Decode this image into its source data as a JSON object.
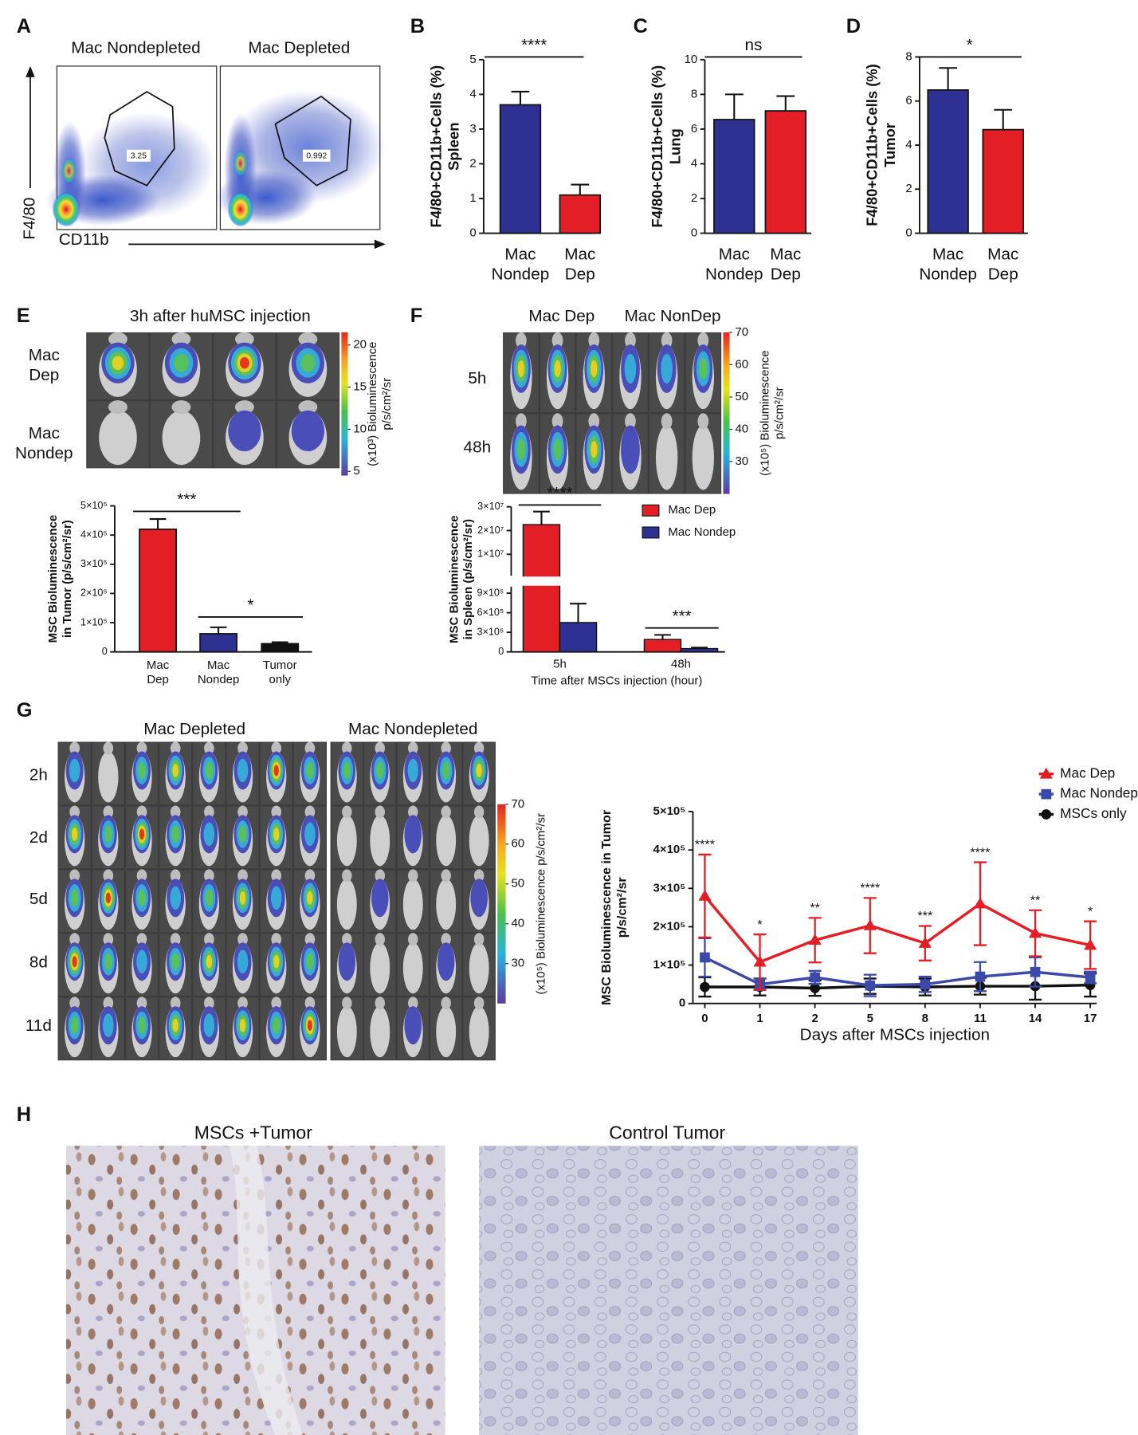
{
  "panel_labels": [
    "A",
    "B",
    "C",
    "D",
    "E",
    "F",
    "G",
    "H"
  ],
  "flow": {
    "ylabel": "F4/80",
    "xlabel": "CD11b",
    "plots": [
      {
        "title": "Mac Nondepleted",
        "gate": "3.25"
      },
      {
        "title": "Mac Depleted",
        "gate": "0.992"
      }
    ]
  },
  "imaging": [
    {
      "title": "3h after huMSC injection",
      "rows": [
        "Mac\nDep",
        "Mac\nNondep"
      ],
      "colorbar": {
        "lim": [
          4.5,
          21.5
        ],
        "ticks": [
          5,
          10,
          15,
          20
        ],
        "label": "(x10³) Bioluminescence\np/s/cm²/sr"
      }
    },
    {
      "columns": [
        "Mac Dep",
        "Mac NonDep"
      ],
      "rows": [
        "5h",
        "48h"
      ],
      "colorbar": {
        "lim": [
          20,
          70
        ],
        "ticks": [
          30,
          40,
          50,
          60,
          70
        ],
        "label": "(x10⁵) Bioluminescence\np/s/cm²/sr"
      }
    },
    {
      "columns": [
        "Mac Depleted",
        "Mac Nondepleted"
      ],
      "rows": [
        "2h",
        "2d",
        "5d",
        "8d",
        "11d"
      ],
      "colorbar": {
        "lim": [
          20,
          70
        ],
        "ticks": [
          30,
          40,
          50,
          60,
          70
        ],
        "label": "(x10⁵) Bioluminescence p/s/cm²/sr"
      }
    }
  ],
  "histology": {
    "panels": [
      "MSCs +Tumor",
      "Control Tumor"
    ]
  },
  "chart_data": [
    {
      "type": "bar",
      "ylabel": "F4/80+CD11b+Cells (%)\nSpleen",
      "categories": [
        "Mac\nNondep",
        "Mac\nDep"
      ],
      "values": [
        3.7,
        1.1
      ],
      "errors": [
        0.38,
        0.3
      ],
      "colors": [
        "#2e3192",
        "#e31e24"
      ],
      "ylim": [
        0,
        5
      ],
      "yticks": [
        0,
        1,
        2,
        3,
        4,
        5
      ],
      "significance": [
        "****"
      ]
    },
    {
      "type": "bar",
      "ylabel": "F4/80+CD11b+Cells (%)\nLung",
      "categories": [
        "Mac\nNondep",
        "Mac\nDep"
      ],
      "values": [
        6.55,
        7.05
      ],
      "errors": [
        1.45,
        0.85
      ],
      "colors": [
        "#2e3192",
        "#e31e24"
      ],
      "ylim": [
        0,
        10
      ],
      "yticks": [
        0,
        2,
        4,
        6,
        8,
        10
      ],
      "significance": [
        "ns"
      ]
    },
    {
      "type": "bar",
      "ylabel": "F4/80+CD11b+Cells (%)\nTumor",
      "categories": [
        "Mac\nNondep",
        "Mac\nDep"
      ],
      "values": [
        6.5,
        4.7
      ],
      "errors": [
        1.0,
        0.9
      ],
      "colors": [
        "#2e3192",
        "#e31e24"
      ],
      "ylim": [
        0,
        8
      ],
      "yticks": [
        0,
        2,
        4,
        6,
        8
      ],
      "significance": [
        "*"
      ]
    },
    {
      "type": "bar",
      "ylabel": "MSC Bioluminescence\nin Tumor (p/s/cm²/sr)",
      "categories": [
        "Mac\nDep",
        "Mac\nNondep",
        "Tumor\nonly"
      ],
      "values": [
        420000,
        62000,
        28000
      ],
      "errors": [
        35000,
        22000,
        5000
      ],
      "colors": [
        "#e31e24",
        "#2e3192",
        "#111111"
      ],
      "ylim": [
        0,
        500000
      ],
      "yticks": [
        0,
        {
          "value": 100000,
          "label": "1×10⁵"
        },
        {
          "value": 200000,
          "label": "2×10⁵"
        },
        {
          "value": 300000,
          "label": "3×10⁵"
        },
        {
          "value": 400000,
          "label": "4×10⁵"
        },
        {
          "value": 500000,
          "label": "5×10⁵"
        }
      ],
      "significance": [
        "***",
        "*"
      ]
    },
    {
      "type": "bar",
      "ylabel": "MSC Bioluminescence\nin Spleen (p/s/cm²/sr)",
      "xlabel": "Time after MSCs injection (hour)",
      "categories": [
        "5h",
        "48h"
      ],
      "series": [
        {
          "name": "Mac Dep",
          "color": "#e31e24",
          "values": [
            22500000,
            190000
          ],
          "errors": [
            5500000,
            70000
          ]
        },
        {
          "name": "Mac Nondep",
          "color": "#2e3192",
          "values": [
            450000,
            50000
          ],
          "errors": [
            290000,
            15000
          ]
        }
      ],
      "ylim": [
        0,
        30000000
      ],
      "ybreak": 1000000,
      "yticks": [
        0,
        {
          "value": 300000,
          "label": "3×10⁵"
        },
        {
          "value": 600000,
          "label": "6×10⁵"
        },
        {
          "value": 900000,
          "label": "9×10⁵"
        },
        {
          "value": 10000000,
          "label": "1×10⁷"
        },
        {
          "value": 20000000,
          "label": "2×10⁷"
        },
        {
          "value": 30000000,
          "label": "3×10⁷"
        }
      ],
      "legend": "upper right",
      "significance": [
        "****",
        "***"
      ]
    },
    {
      "type": "line",
      "ylabel": "MSC Bioluminescence in Tumor\np/s/cm²/sr",
      "xlabel": "Days after MSCs injection",
      "categories": [
        "0",
        "1",
        "2",
        "5",
        "8",
        "11",
        "14",
        "17"
      ],
      "series": [
        {
          "name": "Mac Dep",
          "color": "#e31e24",
          "marker": "triangle",
          "values": [
            280000,
            108000,
            165000,
            203000,
            157000,
            260000,
            183000,
            152000
          ],
          "errors": [
            108000,
            72000,
            58000,
            72000,
            45000,
            108000,
            60000,
            62000
          ]
        },
        {
          "name": "Mac Nondep",
          "color": "#3b49a8",
          "marker": "square",
          "values": [
            120000,
            50000,
            68000,
            47000,
            50000,
            70000,
            82000,
            68000
          ],
          "errors": [
            50000,
            15000,
            17000,
            28000,
            20000,
            38000,
            38000,
            15000
          ]
        },
        {
          "name": "MSCs only",
          "color": "#111111",
          "marker": "circle",
          "values": [
            43000,
            43000,
            40000,
            45000,
            43000,
            45000,
            45000,
            48000
          ],
          "errors": [
            25000,
            22000,
            20000,
            20000,
            22000,
            22000,
            35000,
            30000
          ]
        }
      ],
      "ylim": [
        0,
        500000
      ],
      "yticks": [
        0,
        {
          "value": 100000,
          "label": "1×10⁵"
        },
        {
          "value": 200000,
          "label": "2×10⁵"
        },
        {
          "value": 300000,
          "label": "3×10⁵"
        },
        {
          "value": 400000,
          "label": "4×10⁵"
        },
        {
          "value": 500000,
          "label": "5×10⁵"
        }
      ],
      "legend": "upper right",
      "significance": [
        "****",
        "*",
        "**",
        "****",
        "***",
        "****",
        "**",
        "*"
      ]
    }
  ]
}
